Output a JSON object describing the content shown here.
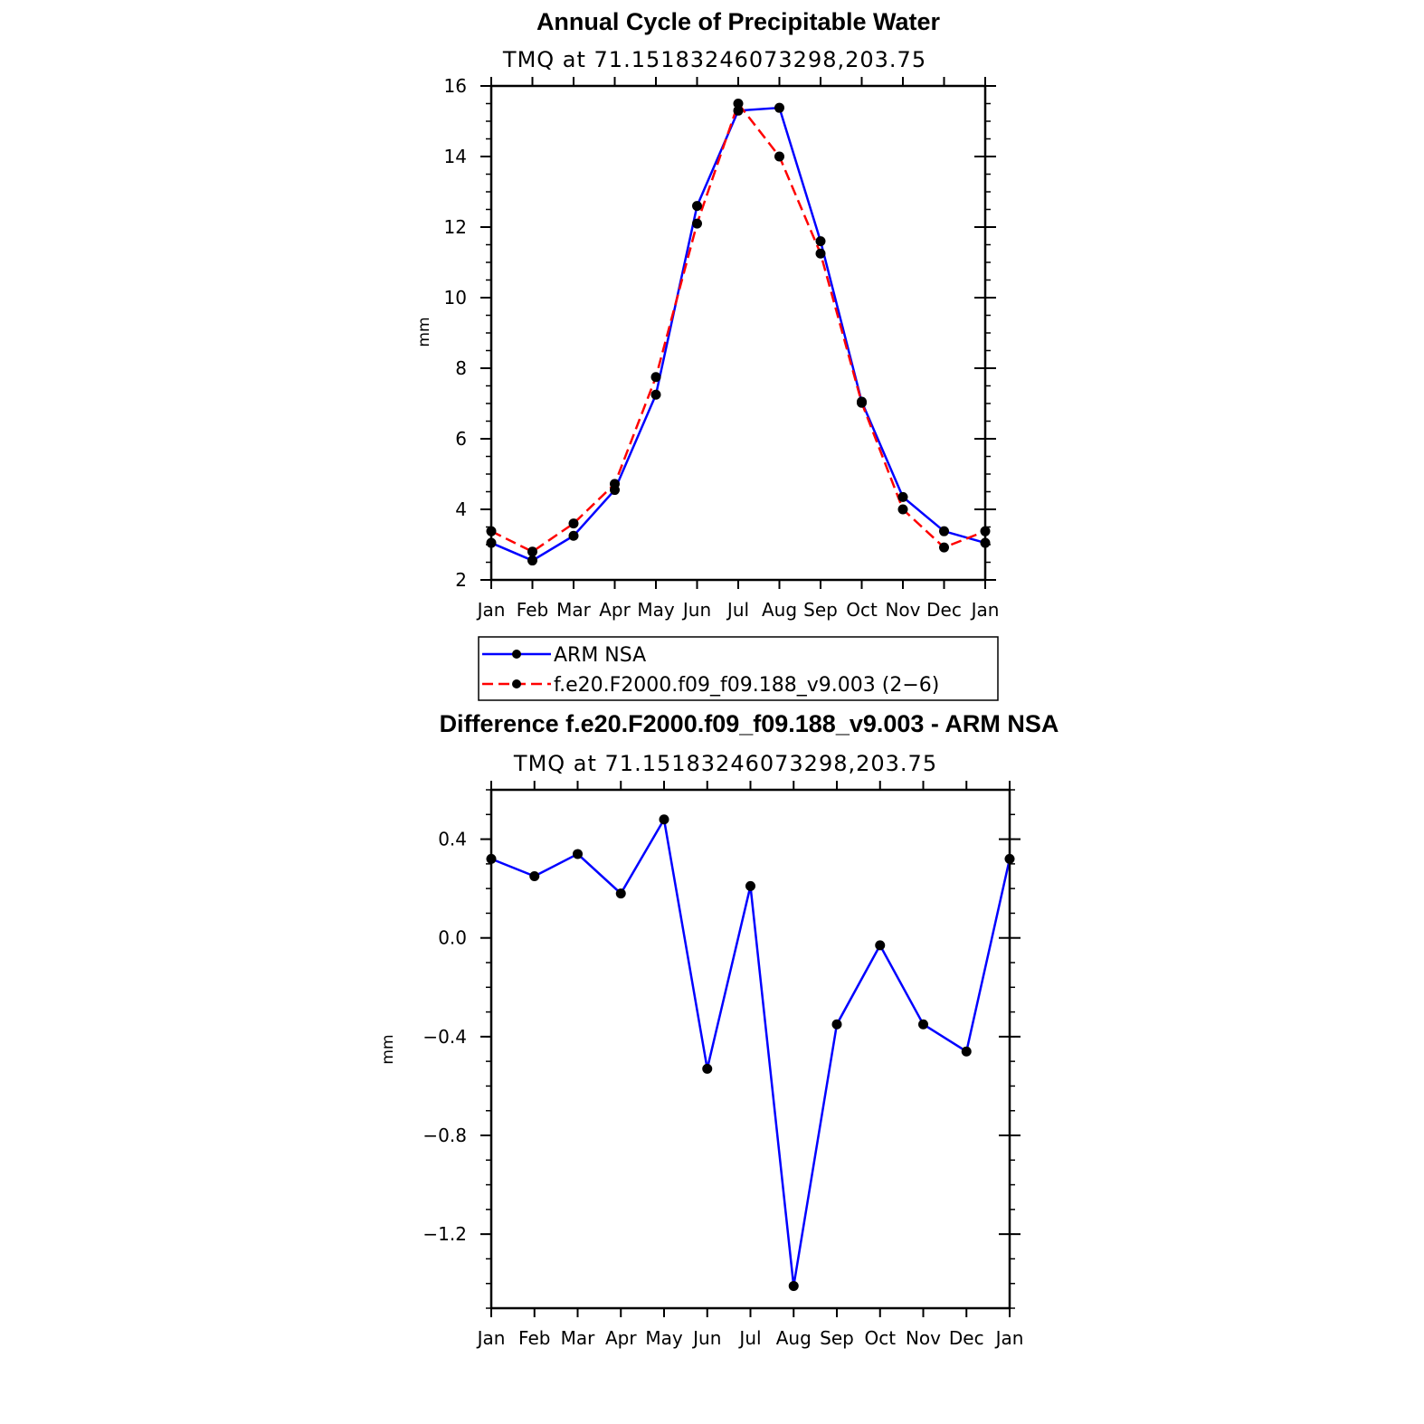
{
  "chart_data": [
    {
      "type": "line",
      "title": "Annual Cycle of Precipitable Water",
      "subtitle": "TMQ at 71.15183246073298,203.75",
      "ylabel": "mm",
      "xlabel": "",
      "categories": [
        "Jan",
        "Feb",
        "Mar",
        "Apr",
        "May",
        "Jun",
        "Jul",
        "Aug",
        "Sep",
        "Oct",
        "Nov",
        "Dec",
        "Jan"
      ],
      "ylim": [
        2,
        16
      ],
      "yticks": [
        "2",
        "4",
        "6",
        "8",
        "10",
        "12",
        "14",
        "16"
      ],
      "grid": false,
      "legend_position": "below",
      "series": [
        {
          "name": "ARM NSA",
          "color": "#0000ff",
          "dash": "solid",
          "values": [
            3.05,
            2.55,
            3.25,
            4.55,
            7.25,
            12.6,
            15.3,
            15.38,
            11.6,
            7.05,
            4.35,
            3.38,
            3.05
          ]
        },
        {
          "name": "f.e20.F2000.f09_f09.188_v9.003 (2−6)",
          "color": "#ff0000",
          "dash": "dashed",
          "values": [
            3.38,
            2.8,
            3.6,
            4.72,
            7.75,
            12.1,
            15.5,
            14.0,
            11.25,
            7.02,
            4.0,
            2.92,
            3.38
          ]
        }
      ]
    },
    {
      "type": "line",
      "title": "Difference f.e20.F2000.f09_f09.188_v9.003 - ARM NSA",
      "subtitle": "TMQ at 71.15183246073298,203.75",
      "ylabel": "mm",
      "xlabel": "",
      "categories": [
        "Jan",
        "Feb",
        "Mar",
        "Apr",
        "May",
        "Jun",
        "Jul",
        "Aug",
        "Sep",
        "Oct",
        "Nov",
        "Dec",
        "Jan"
      ],
      "ylim": [
        -1.5,
        0.6
      ],
      "yticks": [
        "−1.2",
        "−0.8",
        "−0.4",
        "0.0",
        "0.4"
      ],
      "grid": false,
      "series": [
        {
          "color": "#0000ff",
          "dash": "solid",
          "values": [
            0.32,
            0.25,
            0.34,
            0.18,
            0.48,
            -0.53,
            0.21,
            -1.41,
            -0.35,
            -0.03,
            -0.35,
            -0.46,
            0.32
          ]
        }
      ]
    }
  ]
}
